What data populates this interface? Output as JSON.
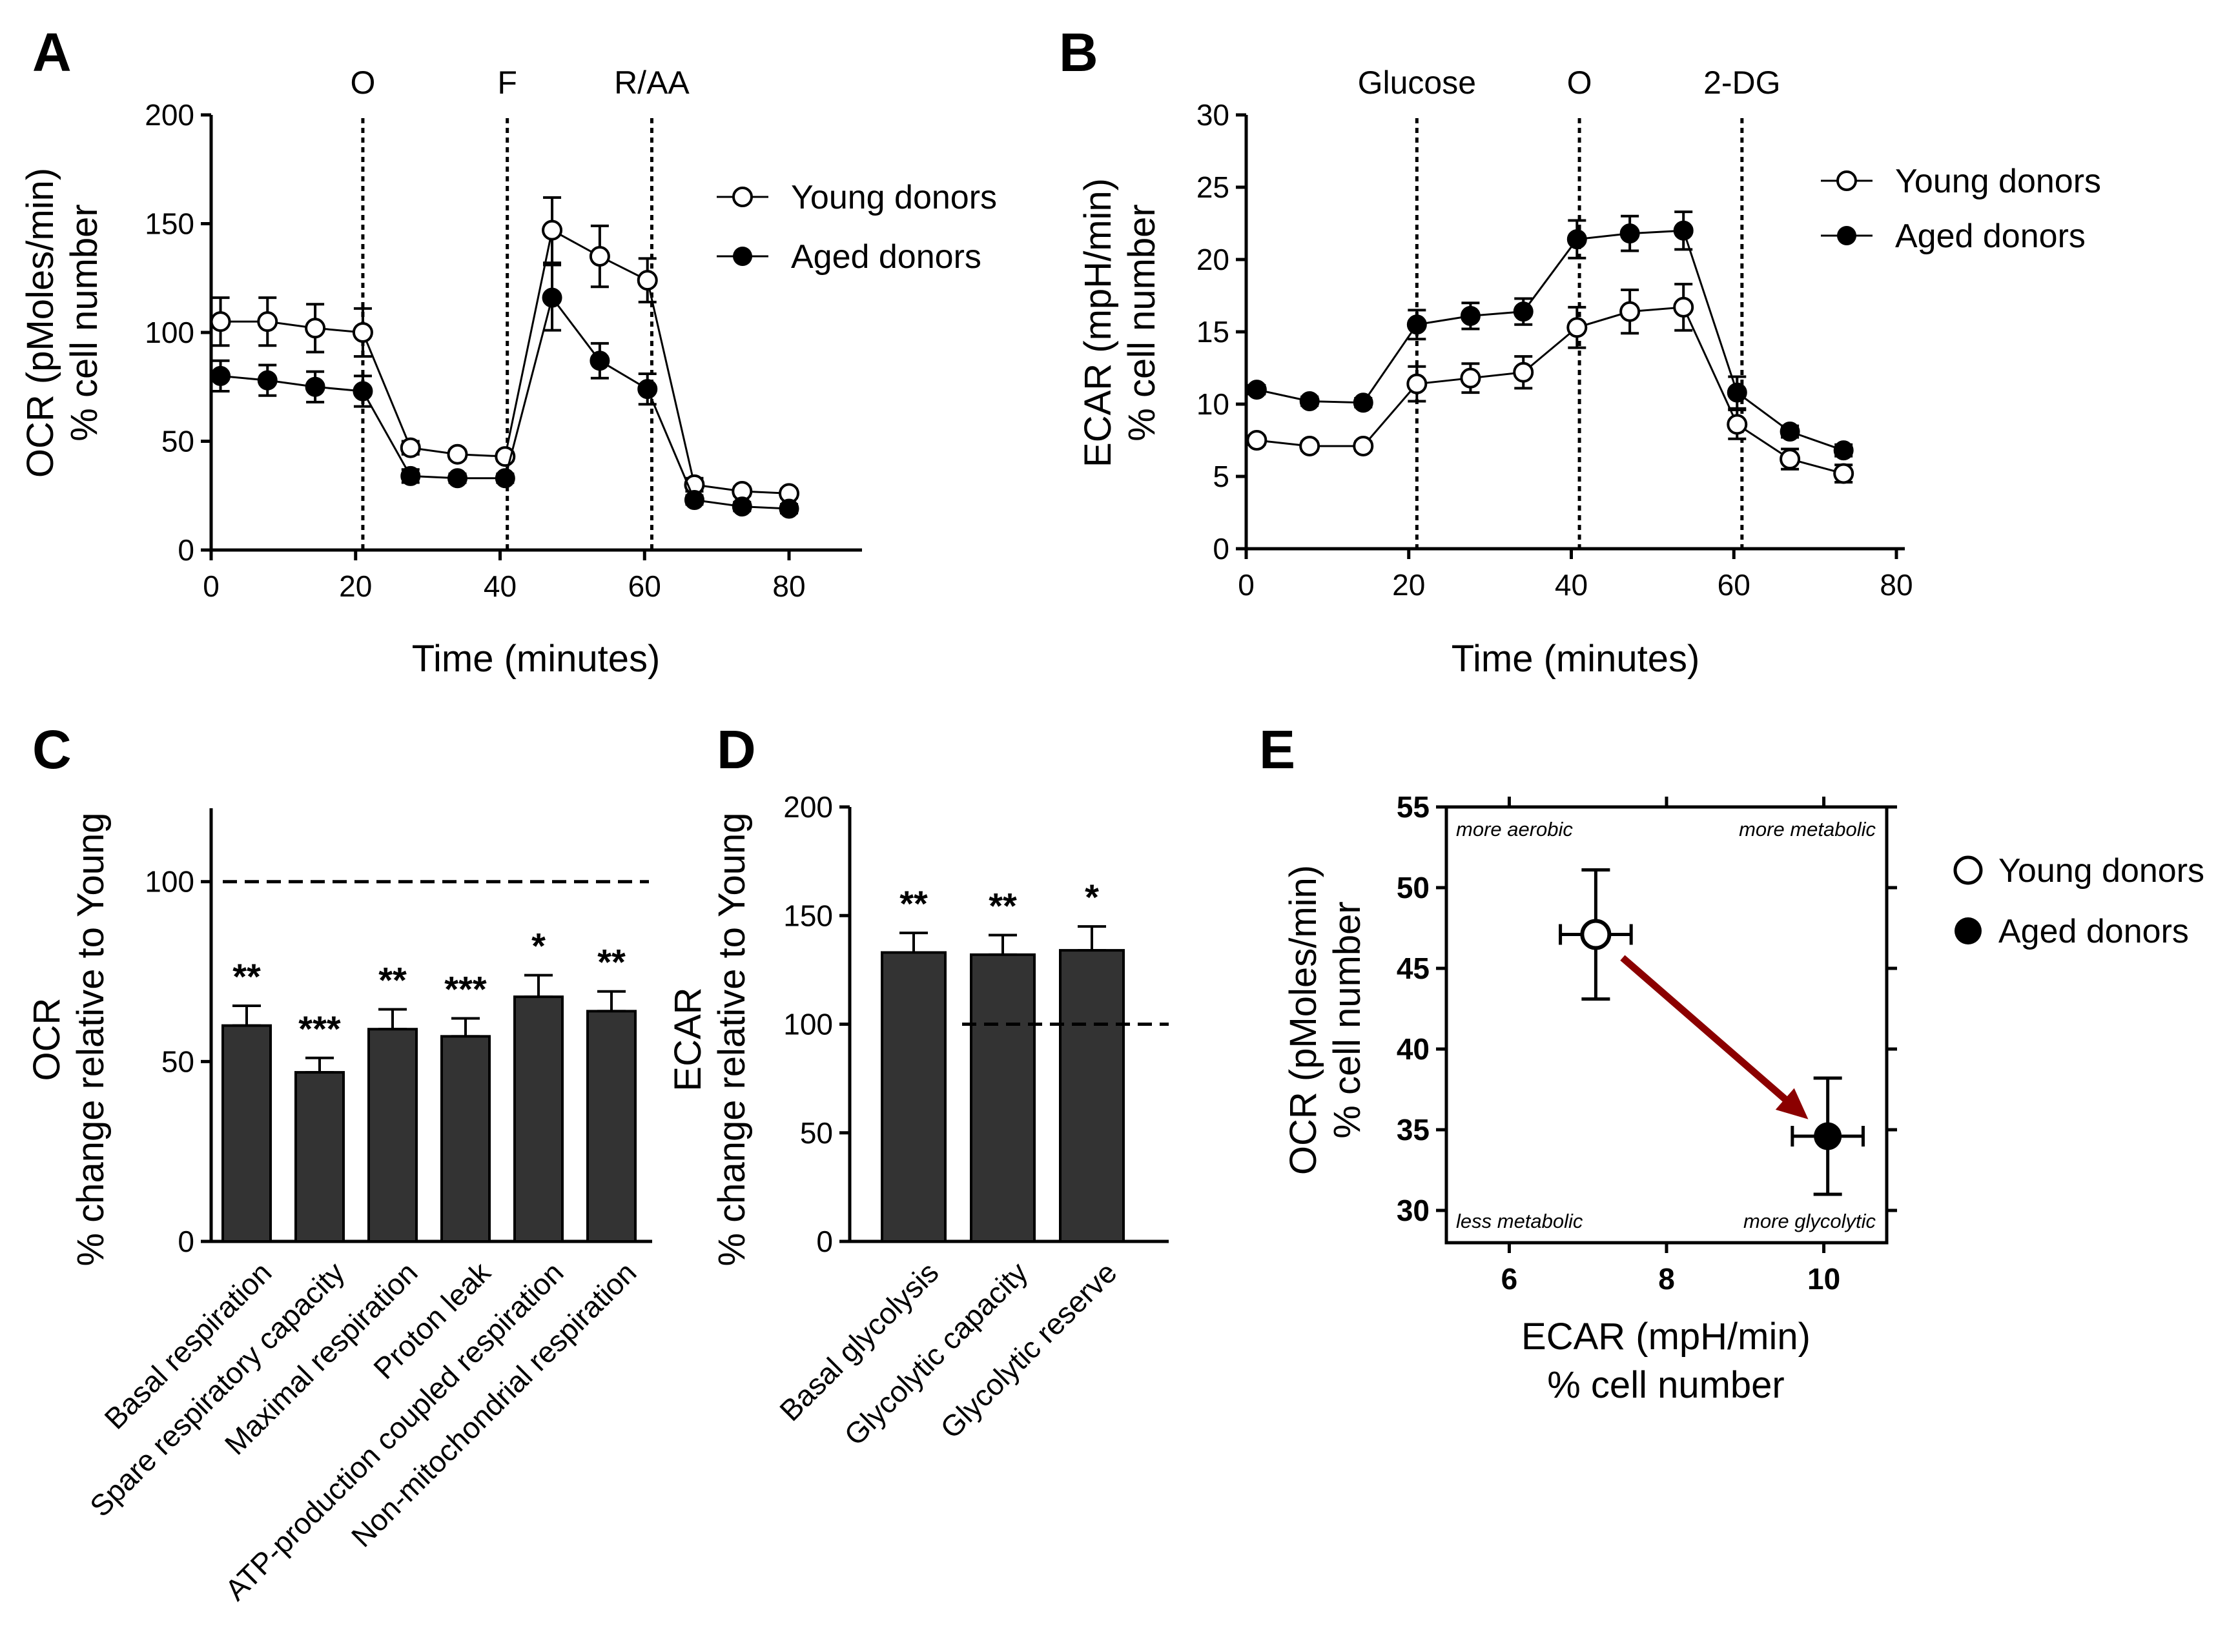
{
  "chart_data": [
    {
      "panel": "A",
      "type": "line",
      "xlabel": "Time (minutes)",
      "ylabel": [
        "OCR (pMoles/min)",
        "% cell number"
      ],
      "xlim": [
        0,
        80
      ],
      "ylim": [
        0,
        200
      ],
      "xticks": [
        "0",
        "20",
        "40",
        "60",
        "80"
      ],
      "yticks": [
        "0",
        "50",
        "100",
        "150",
        "200"
      ],
      "markers": [
        {
          "x": 21,
          "label": "O"
        },
        {
          "x": 41,
          "label": "F"
        },
        {
          "x": 61,
          "label": "R/AA"
        }
      ],
      "legend_position": "top-right",
      "x": [
        1.3,
        7.8,
        14.4,
        21.0,
        27.6,
        34.1,
        40.7,
        47.2,
        53.8,
        60.4,
        66.9,
        73.5,
        80.0
      ],
      "series": [
        {
          "name": "Young donors",
          "marker": "open-circle",
          "values": [
            105,
            105,
            102,
            100,
            47,
            44,
            43,
            147,
            135,
            124,
            30,
            27,
            26
          ],
          "errors": [
            11,
            11,
            11,
            11,
            3,
            2,
            2,
            15,
            14,
            10,
            3,
            2,
            2
          ]
        },
        {
          "name": "Aged donors",
          "marker": "filled-circle",
          "values": [
            80,
            78,
            75,
            73,
            34,
            33,
            33,
            116,
            87,
            74,
            23,
            20,
            19
          ],
          "errors": [
            7,
            7,
            7,
            7,
            3,
            2,
            2,
            15,
            8,
            7,
            2,
            2,
            2
          ]
        }
      ]
    },
    {
      "panel": "B",
      "type": "line",
      "xlabel": "Time (minutes)",
      "ylabel": [
        "ECAR (mpH/min)",
        "% cell number"
      ],
      "xlim": [
        0,
        80
      ],
      "ylim": [
        0,
        30
      ],
      "xticks": [
        "0",
        "20",
        "40",
        "60",
        "80"
      ],
      "yticks": [
        "0",
        "5",
        "10",
        "15",
        "20",
        "25",
        "30"
      ],
      "markers": [
        {
          "x": 21,
          "label": "Glucose"
        },
        {
          "x": 41,
          "label": "O"
        },
        {
          "x": 61,
          "label": "2-DG"
        }
      ],
      "legend_position": "top-right",
      "x": [
        1.3,
        7.8,
        14.4,
        21.0,
        27.6,
        34.1,
        40.7,
        47.2,
        53.8,
        60.4,
        66.9,
        73.5
      ],
      "series": [
        {
          "name": "Young donors",
          "marker": "open-circle",
          "values": [
            7.5,
            7.1,
            7.1,
            11.4,
            11.8,
            12.2,
            15.3,
            16.4,
            16.7,
            8.6,
            6.2,
            5.2
          ],
          "errors": [
            0.3,
            0.3,
            0.3,
            1.2,
            1.0,
            1.1,
            1.4,
            1.5,
            1.6,
            1.0,
            0.7,
            0.6
          ]
        },
        {
          "name": "Aged donors",
          "marker": "filled-circle",
          "values": [
            11.0,
            10.2,
            10.1,
            15.5,
            16.1,
            16.4,
            21.4,
            21.8,
            22.0,
            10.8,
            8.1,
            6.8
          ],
          "errors": [
            0.3,
            0.3,
            0.3,
            1.0,
            0.9,
            0.9,
            1.3,
            1.2,
            1.3,
            1.1,
            0.4,
            0.4
          ]
        }
      ]
    },
    {
      "panel": "C",
      "type": "bar",
      "ylabel": [
        "OCR",
        "% change relative to Young"
      ],
      "ylim": [
        0,
        110
      ],
      "yticks": [
        "0",
        "50",
        "100"
      ],
      "reference_line": 100,
      "categories": [
        "Basal respiration",
        "Spare respiratory capacity",
        "Maximal respiration",
        "Proton leak",
        "ATP-production coupled respiration",
        "Non-mitochondrial  respiration"
      ],
      "values": [
        60,
        47,
        59,
        57,
        68,
        64
      ],
      "errors": [
        5.5,
        4,
        5.5,
        5,
        6,
        5.5
      ],
      "significance": [
        "**",
        "***",
        "**",
        "***",
        "*",
        "**"
      ]
    },
    {
      "panel": "D",
      "type": "bar",
      "ylabel": [
        "ECAR",
        "% change relative to Young"
      ],
      "ylim": [
        0,
        200
      ],
      "yticks": [
        "0",
        "50",
        "100",
        "150",
        "200"
      ],
      "reference_line": 100,
      "categories": [
        "Basal glycolysis",
        "Glycolytic capacity",
        "Glycolytic reserve"
      ],
      "values": [
        133,
        132,
        134
      ],
      "errors": [
        9,
        9,
        11
      ],
      "significance": [
        "**",
        "**",
        "*"
      ]
    },
    {
      "panel": "E",
      "type": "scatter",
      "xlabel": [
        "ECAR (mpH/min)",
        "% cell number"
      ],
      "ylabel": [
        "OCR (pMoles/min)",
        "% cell number"
      ],
      "xlim": [
        5.2,
        10.8
      ],
      "ylim": [
        28,
        55
      ],
      "xticks": [
        "6",
        "8",
        "10"
      ],
      "yticks": [
        "30",
        "35",
        "40",
        "45",
        "50",
        "55"
      ],
      "quadrant_labels": {
        "top_left": "more aerobic",
        "top_right": "more metabolic",
        "bottom_left": "less metabolic",
        "bottom_right": "more glycolytic"
      },
      "arrow_color": "#8b0000",
      "legend_position": "right",
      "series": [
        {
          "name": "Young donors",
          "marker": "open-circle",
          "x": 7.1,
          "y": 47.1,
          "xerr": 0.45,
          "yerr": 4.0
        },
        {
          "name": "Aged donors",
          "marker": "filled-circle",
          "x": 10.05,
          "y": 34.6,
          "xerr": 0.45,
          "yerr": 3.6
        }
      ]
    }
  ],
  "panel_labels": [
    "A",
    "B",
    "C",
    "D",
    "E"
  ]
}
